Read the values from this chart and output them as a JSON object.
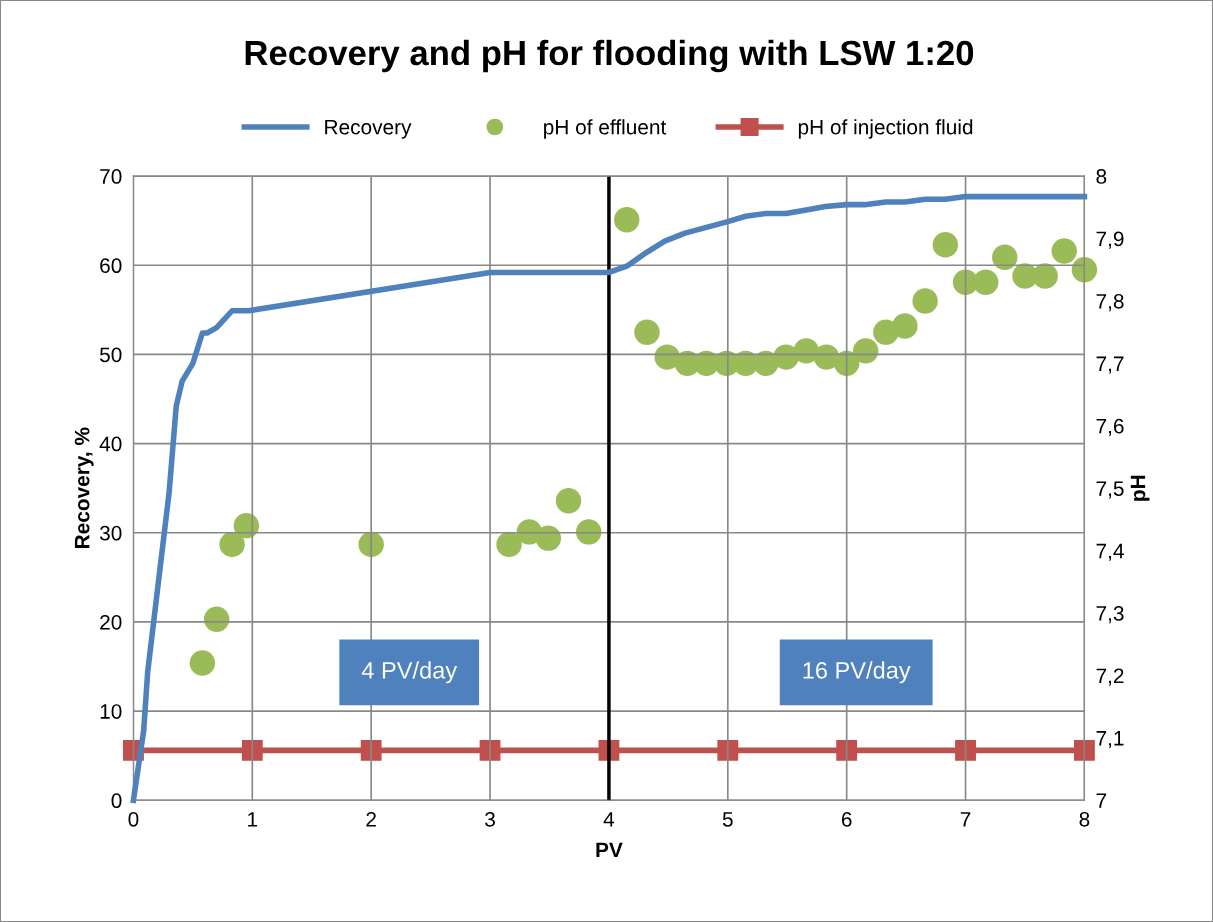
{
  "chart_data": {
    "type": "line",
    "title": "Recovery and pH for flooding with LSW 1:20",
    "xlabel": "PV",
    "ylabel": "Recovery, %",
    "y2label": "pH",
    "xlim": [
      0,
      8
    ],
    "xticks": [
      0,
      1,
      2,
      3,
      4,
      5,
      6,
      7,
      8
    ],
    "ylim": [
      0,
      70
    ],
    "yticks": [
      0,
      10,
      20,
      30,
      40,
      50,
      60,
      70
    ],
    "y2lim": [
      7,
      8
    ],
    "y2ticks": [
      7,
      {
        "value": 7.1,
        "label": "7,1"
      },
      {
        "value": 7.2,
        "label": "7,2"
      },
      {
        "value": 7.3,
        "label": "7,3"
      },
      {
        "value": 7.4,
        "label": "7,4"
      },
      {
        "value": 7.5,
        "label": "7,5"
      },
      {
        "value": 7.6,
        "label": "7,6"
      },
      {
        "value": 7.7,
        "label": "7,7"
      },
      {
        "value": 7.8,
        "label": "7,8"
      },
      {
        "value": 7.9,
        "label": "7,9"
      },
      8
    ],
    "grid": true,
    "legend": "top",
    "series": [
      {
        "name": "Recovery",
        "color": "#4f81bd",
        "marker": "none",
        "x": [
          0,
          0.086,
          0.12,
          0.3,
          0.36,
          0.41,
          0.5,
          0.58,
          0.62,
          0.7,
          0.83,
          0.97,
          3,
          4,
          4.15,
          4.3,
          4.47,
          4.64,
          5,
          5.15,
          5.32,
          5.49,
          5.66,
          5.82,
          6,
          6.15,
          6.33,
          6.49,
          6.66,
          6.83,
          7,
          8
        ],
        "values": [
          0,
          7.8,
          14.4,
          34.5,
          44.2,
          47,
          49,
          52.4,
          52.4,
          53,
          54.9,
          54.9,
          59.2,
          59.2,
          59.9,
          61.3,
          62.7,
          63.6,
          64.9,
          65.5,
          65.8,
          65.8,
          66.2,
          66.6,
          66.8,
          66.8,
          67.1,
          67.1,
          67.4,
          67.4,
          67.7,
          67.7
        ]
      },
      {
        "name": "pH of effluent",
        "type": "scatter",
        "axis": "y2",
        "color": "#9bbb59",
        "marker": "circle",
        "x": [
          0.58,
          0.7,
          0.83,
          0.95,
          2,
          3.16,
          3.33,
          3.49,
          3.66,
          3.83,
          4.15,
          4.32,
          4.49,
          4.66,
          4.82,
          4.99,
          5.15,
          5.32,
          5.49,
          5.66,
          5.83,
          6,
          6.16,
          6.33,
          6.49,
          6.66,
          6.83,
          7,
          7.17,
          7.33,
          7.5,
          7.67,
          7.83,
          8
        ],
        "values": [
          7.22,
          7.29,
          7.41,
          7.44,
          7.41,
          7.41,
          7.43,
          7.42,
          7.48,
          7.43,
          7.93,
          7.75,
          7.71,
          7.7,
          7.7,
          7.7,
          7.7,
          7.7,
          7.71,
          7.72,
          7.71,
          7.7,
          7.72,
          7.75,
          7.76,
          7.8,
          7.89,
          7.83,
          7.83,
          7.87,
          7.84,
          7.84,
          7.88,
          7.85
        ]
      },
      {
        "name": "pH of injection fluid",
        "axis": "y2",
        "color": "#c0504d",
        "marker": "square",
        "x": [
          0,
          1,
          2,
          3,
          4,
          5,
          6,
          7,
          8
        ],
        "values": [
          7.08,
          7.08,
          7.08,
          7.08,
          7.08,
          7.08,
          7.08,
          7.08,
          7.08
        ]
      }
    ],
    "ref_lines": [
      {
        "axis": "x",
        "value": 4,
        "color": "#000000"
      }
    ],
    "annotations": [
      "4 PV/day",
      "16 PV/day"
    ]
  }
}
